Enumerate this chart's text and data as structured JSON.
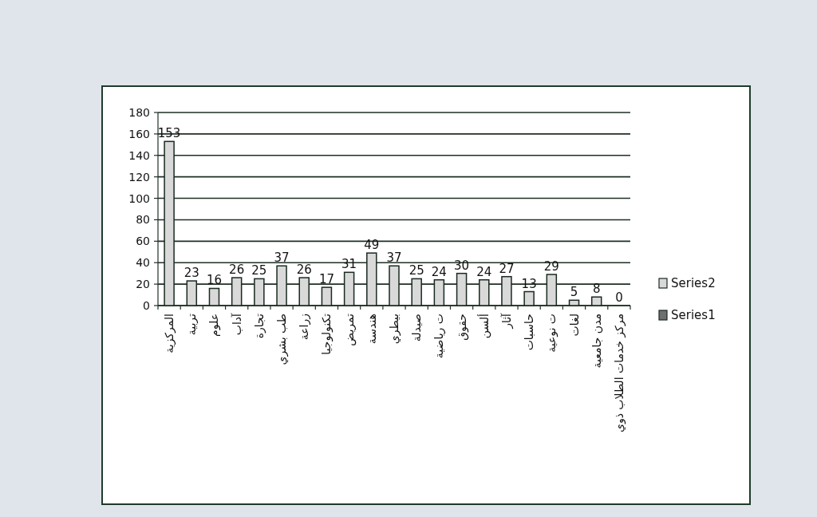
{
  "chart_data": {
    "type": "bar",
    "categories": [
      "المركزية",
      "تربية",
      "علوم",
      "آداب",
      "تجارة",
      "طب بشري",
      "زراعة",
      "تكنولوجيا",
      "تمريض",
      "هندسة",
      "بيطري",
      "صيدلة",
      "ت رياضية",
      "حقوق",
      "ألسن",
      "آثار",
      "حاسبات",
      "ت نوعية",
      "لغات",
      "مدن جامعية",
      "مركز خدمات الطلاب ذوي"
    ],
    "series": [
      {
        "name": "Series2",
        "color": "#d9d9d9",
        "values": [
          153,
          23,
          16,
          26,
          25,
          37,
          26,
          17,
          31,
          49,
          37,
          25,
          24,
          30,
          24,
          27,
          13,
          29,
          5,
          8,
          0
        ]
      },
      {
        "name": "Series1",
        "color": "#6f6f6f",
        "values": [
          null,
          null,
          null,
          null,
          null,
          null,
          null,
          null,
          null,
          null,
          null,
          null,
          null,
          null,
          null,
          null,
          null,
          null,
          null,
          null,
          null
        ]
      }
    ],
    "ylim": [
      0,
      180
    ],
    "yticks": [
      0,
      20,
      40,
      60,
      80,
      100,
      120,
      140,
      160,
      180
    ],
    "grid": "y",
    "legend": "right",
    "data_labels": true
  }
}
